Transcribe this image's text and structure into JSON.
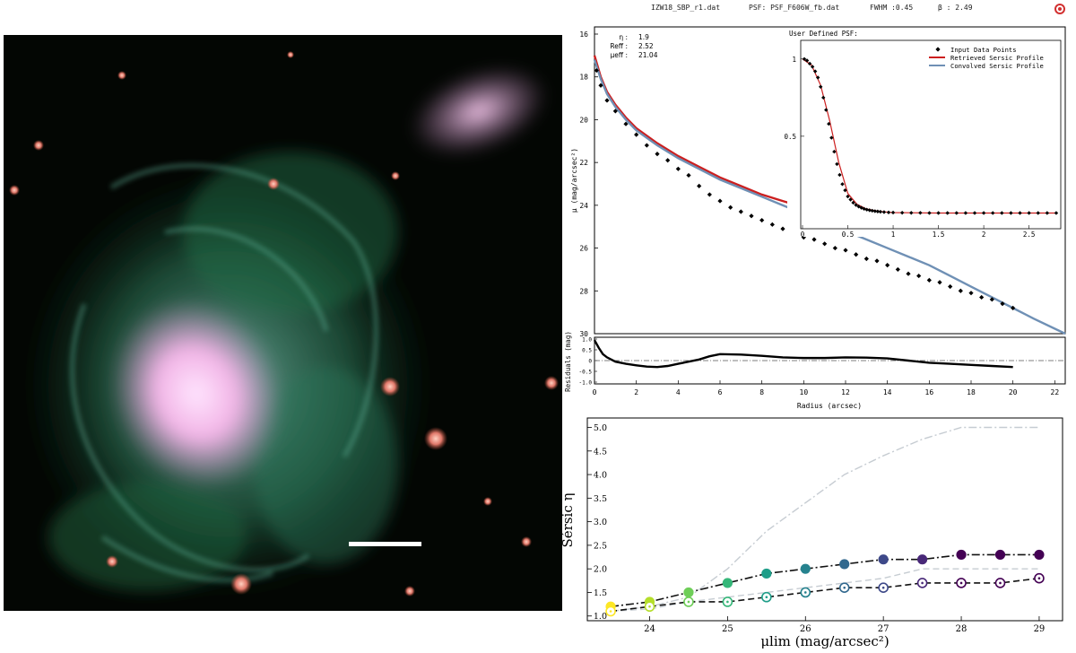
{
  "image": {
    "alt": "galaxy-color-composite",
    "scale_bar": true
  },
  "header": {
    "file": "IZW18_SBP_r1.dat",
    "psf": "PSF: PSF_F606W_fb.dat",
    "fwhm": "FWHM :0.45",
    "beta": "β : 2.49"
  },
  "fit_params": [
    {
      "label": "η :",
      "value": "1.9"
    },
    {
      "label": "Reff :",
      "value": "2.52"
    },
    {
      "label": "μeff :",
      "value": "21.04"
    }
  ],
  "chart_data": [
    {
      "type": "line",
      "panel": "surface-brightness-profile",
      "xlabel": "",
      "ylabel": "μ (mag/arcsec²)",
      "xlim": [
        0,
        22.5
      ],
      "ylim": [
        30,
        16
      ],
      "yticks": [
        16,
        18,
        20,
        22,
        24,
        26,
        28,
        30
      ],
      "series": [
        {
          "name": "",
          "kind": "points",
          "marker": "diamond",
          "color": "#000000",
          "x": [
            0.1,
            0.3,
            0.6,
            1.0,
            1.5,
            2.0,
            2.5,
            3.0,
            3.5,
            4.0,
            4.5,
            5.0,
            5.5,
            6.0,
            6.5,
            7.0,
            7.5,
            8.0,
            8.5,
            9.0,
            9.5,
            10.0,
            10.5,
            11.0,
            11.5,
            12.0,
            12.5,
            13.0,
            13.5,
            14.0,
            14.5,
            15.0,
            15.5,
            16.0,
            16.5,
            17.0,
            17.5,
            18.0,
            18.5,
            19.0,
            19.5,
            20.0
          ],
          "y": [
            17.7,
            18.4,
            19.1,
            19.6,
            20.2,
            20.7,
            21.2,
            21.6,
            21.9,
            22.3,
            22.6,
            23.1,
            23.5,
            23.8,
            24.1,
            24.3,
            24.5,
            24.7,
            24.9,
            25.1,
            25.3,
            25.5,
            25.6,
            25.8,
            26.0,
            26.1,
            26.3,
            26.5,
            26.6,
            26.8,
            27.0,
            27.2,
            27.3,
            27.5,
            27.6,
            27.8,
            28.0,
            28.1,
            28.3,
            28.4,
            28.6,
            28.8
          ]
        },
        {
          "name": "",
          "kind": "line",
          "color": "#cc1f1f",
          "x": [
            0,
            0.3,
            0.6,
            1,
            1.5,
            2,
            3,
            4,
            5,
            6,
            7,
            8,
            9,
            10
          ],
          "y": [
            17.0,
            18.0,
            18.7,
            19.3,
            19.9,
            20.4,
            21.1,
            21.7,
            22.2,
            22.7,
            23.1,
            23.5,
            23.8,
            24.1
          ]
        },
        {
          "name": "",
          "kind": "line",
          "color": "#6f90b5",
          "x": [
            0,
            0.3,
            0.6,
            1,
            1.5,
            2,
            3,
            4,
            5,
            6,
            7,
            8,
            9,
            10,
            11,
            12,
            13,
            14,
            15,
            16,
            17,
            18,
            19,
            20,
            21,
            22.5
          ],
          "y": [
            17.2,
            18.1,
            18.8,
            19.4,
            20.0,
            20.5,
            21.2,
            21.8,
            22.3,
            22.8,
            23.2,
            23.6,
            24.0,
            24.4,
            24.8,
            25.2,
            25.6,
            26.0,
            26.4,
            26.8,
            27.3,
            27.8,
            28.3,
            28.8,
            29.3,
            30.0
          ]
        }
      ]
    },
    {
      "type": "line",
      "panel": "psf-inset",
      "title": "User Defined PSF:",
      "xlim": [
        0,
        2.85
      ],
      "ylim": [
        0,
        1.08
      ],
      "xticks": [
        0,
        0.5,
        1,
        1.5,
        2,
        2.5
      ],
      "xtick_labels": [
        "0",
        "0.5",
        "1",
        "1.5",
        "2",
        "2.5"
      ],
      "yticks": [
        0.5,
        1
      ],
      "ytick_labels": [
        "0.5",
        "1"
      ],
      "series": [
        {
          "name": "Input Data Points",
          "kind": "points",
          "marker": "diamond",
          "color": "#000000",
          "x": [
            0.02,
            0.05,
            0.08,
            0.11,
            0.14,
            0.17,
            0.2,
            0.23,
            0.26,
            0.29,
            0.32,
            0.35,
            0.38,
            0.41,
            0.44,
            0.47,
            0.5,
            0.53,
            0.56,
            0.59,
            0.62,
            0.65,
            0.68,
            0.71,
            0.74,
            0.77,
            0.8,
            0.83,
            0.86,
            0.9,
            0.95,
            1.0,
            1.1,
            1.2,
            1.3,
            1.4,
            1.5,
            1.6,
            1.7,
            1.8,
            1.9,
            2.0,
            2.1,
            2.2,
            2.3,
            2.4,
            2.5,
            2.6,
            2.7,
            2.8
          ],
          "y": [
            1.0,
            0.99,
            0.97,
            0.95,
            0.92,
            0.88,
            0.82,
            0.75,
            0.67,
            0.58,
            0.49,
            0.4,
            0.32,
            0.25,
            0.19,
            0.15,
            0.11,
            0.09,
            0.07,
            0.055,
            0.045,
            0.037,
            0.03,
            0.025,
            0.021,
            0.018,
            0.015,
            0.013,
            0.011,
            0.009,
            0.007,
            0.006,
            0.005,
            0.004,
            0.004,
            0.003,
            0.003,
            0.003,
            0.003,
            0.003,
            0.003,
            0.003,
            0.003,
            0.003,
            0.003,
            0.003,
            0.003,
            0.003,
            0.003,
            0.003
          ]
        },
        {
          "name": "Retrieved Sersic Profile",
          "kind": "line",
          "color": "#cc1f1f",
          "x": [
            0,
            0.1,
            0.2,
            0.3,
            0.4,
            0.5,
            0.6,
            0.7,
            0.8,
            0.9,
            1.0,
            1.5,
            2.0,
            2.5,
            2.8
          ],
          "y": [
            1.0,
            0.96,
            0.83,
            0.6,
            0.33,
            0.13,
            0.06,
            0.03,
            0.018,
            0.01,
            0.006,
            0.003,
            0.003,
            0.003,
            0.003
          ]
        },
        {
          "name": "Convolved Sersic Profile",
          "kind": "line",
          "color": "#6f90b5",
          "x": [],
          "y": []
        }
      ]
    },
    {
      "type": "line",
      "panel": "residuals",
      "xlabel": "Radius (arcsec)",
      "ylabel": "Residuals (mag)",
      "xlim": [
        0,
        22.5
      ],
      "ylim": [
        -1,
        1
      ],
      "xticks": [
        0,
        2,
        4,
        6,
        8,
        10,
        12,
        14,
        16,
        18,
        20,
        22
      ],
      "yticks": [
        1,
        0.5,
        0,
        -0.5,
        -1
      ],
      "ytick_labels": [
        "1.0",
        "0.5",
        "0",
        "-0.5",
        "-1.0"
      ],
      "series": [
        {
          "name": "",
          "kind": "line",
          "color": "#000000",
          "x": [
            0,
            0.2,
            0.4,
            0.6,
            0.8,
            1,
            1.5,
            2,
            2.5,
            3,
            3.5,
            4,
            4.5,
            5,
            5.5,
            6,
            7,
            8,
            9,
            10,
            11,
            12,
            13,
            14,
            15,
            16,
            17,
            18,
            19,
            20
          ],
          "y": [
            0.95,
            0.6,
            0.3,
            0.15,
            0.05,
            -0.05,
            -0.15,
            -0.22,
            -0.28,
            -0.3,
            -0.25,
            -0.15,
            -0.05,
            0.05,
            0.2,
            0.3,
            0.28,
            0.22,
            0.15,
            0.12,
            0.12,
            0.15,
            0.14,
            0.1,
            0.0,
            -0.1,
            -0.15,
            -0.2,
            -0.25,
            -0.3
          ]
        }
      ]
    },
    {
      "type": "line",
      "panel": "sersic-vs-mulim",
      "xlabel": "μlim (mag/arcsec²)",
      "ylabel": "Sérsic η",
      "xlim": [
        23.2,
        29.3
      ],
      "ylim": [
        0.9,
        5.2
      ],
      "xticks": [
        24,
        25,
        26,
        27,
        28,
        29
      ],
      "yticks": [
        1.0,
        1.5,
        2.0,
        2.5,
        3.0,
        3.5,
        4.0,
        4.5,
        5.0
      ],
      "ytick_labels": [
        "1.0",
        "1.5",
        "2.0",
        "2.5",
        "3.0",
        "3.5",
        "4.0",
        "4.5",
        "5.0"
      ],
      "x": [
        23.5,
        24.0,
        24.5,
        25.0,
        25.5,
        26.0,
        26.5,
        27.0,
        27.5,
        28.0,
        28.5,
        29.0
      ],
      "point_colors": [
        "#fde725",
        "#b5de2b",
        "#6ece58",
        "#35b779",
        "#1f9e89",
        "#26828e",
        "#31688e",
        "#3e4989",
        "#482878",
        "#440154",
        "#440154",
        "#440154"
      ],
      "series": [
        {
          "name": "",
          "style": "dash-dot",
          "color": "#111111",
          "marker": "filled",
          "y": [
            1.2,
            1.3,
            1.5,
            1.7,
            1.9,
            2.0,
            2.1,
            2.2,
            2.2,
            2.3,
            2.3,
            2.3
          ]
        },
        {
          "name": "",
          "style": "dashed",
          "color": "#111111",
          "marker": "open",
          "y": [
            1.1,
            1.2,
            1.3,
            1.3,
            1.4,
            1.5,
            1.6,
            1.6,
            1.7,
            1.7,
            1.7,
            1.8
          ]
        },
        {
          "name": "",
          "style": "dash-dot",
          "color": "#c6ccd2",
          "marker": "none",
          "y": [
            1.1,
            1.2,
            1.4,
            2.0,
            2.8,
            3.4,
            4.0,
            4.4,
            4.75,
            5.0,
            5.0,
            5.0
          ]
        },
        {
          "name": "",
          "style": "dashed",
          "color": "#c6ccd2",
          "marker": "none",
          "y": [
            1.1,
            1.15,
            1.3,
            1.4,
            1.5,
            1.6,
            1.7,
            1.8,
            2.0,
            2.0,
            2.0,
            2.0
          ]
        }
      ]
    }
  ]
}
